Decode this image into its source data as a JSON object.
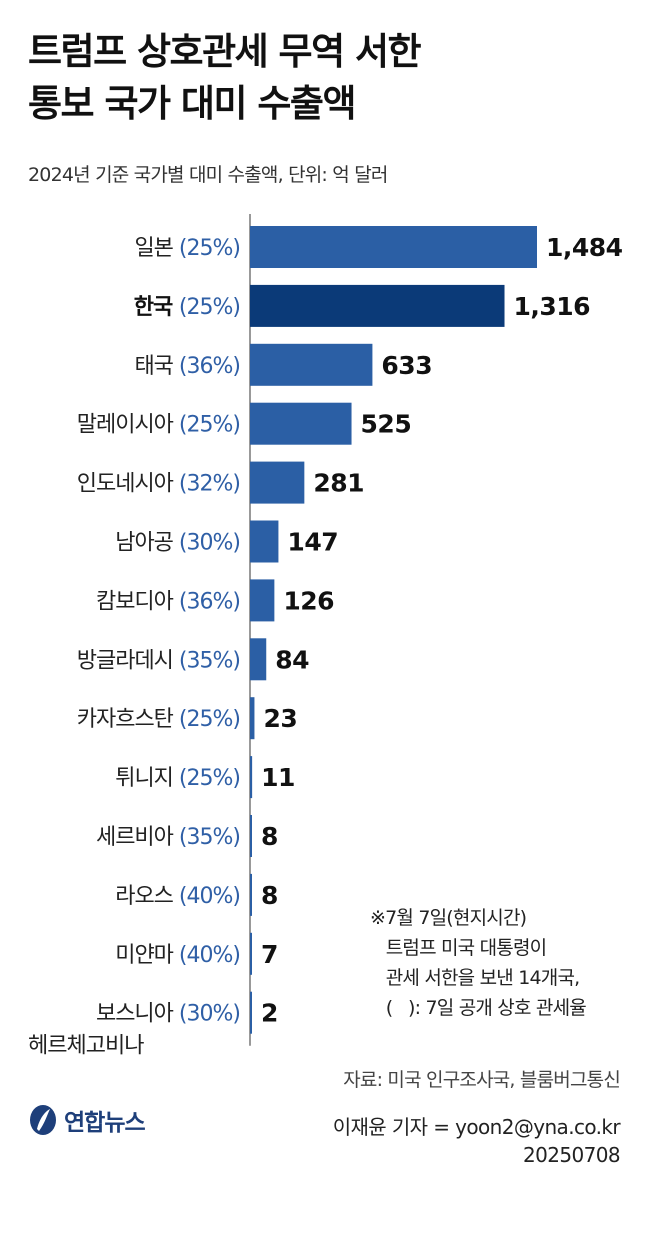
{
  "title_line1": "트럼프 상호관세 무역 서한",
  "title_line2": "통보 국가 대미 수출액",
  "subtitle": "2024년 기준 국가별 대미 수출액, 단위: 억 달러",
  "colors": {
    "bar": "#2b5fa5",
    "highlight": "#0b3a78",
    "rate": "#2f5fa6",
    "axis": "#999999"
  },
  "chart_data": {
    "type": "bar",
    "orientation": "horizontal",
    "categories": [
      "일본",
      "한국",
      "태국",
      "말레이시아",
      "인도네시아",
      "남아공",
      "캄보디아",
      "방글라데시",
      "카자흐스탄",
      "튀니지",
      "세르비아",
      "라오스",
      "미얀마",
      "보스니아 헤르체고비나"
    ],
    "category_lines": [
      [
        "일본"
      ],
      [
        "한국"
      ],
      [
        "태국"
      ],
      [
        "말레이시아"
      ],
      [
        "인도네시아"
      ],
      [
        "남아공"
      ],
      [
        "캄보디아"
      ],
      [
        "방글라데시"
      ],
      [
        "카자흐스탄"
      ],
      [
        "튀니지"
      ],
      [
        "세르비아"
      ],
      [
        "라오스"
      ],
      [
        "미얀마"
      ],
      [
        "보스니아",
        "헤르체고비나"
      ]
    ],
    "tariff_rates": [
      "(25%)",
      "(25%)",
      "(36%)",
      "(25%)",
      "(32%)",
      "(30%)",
      "(36%)",
      "(35%)",
      "(25%)",
      "(25%)",
      "(35%)",
      "(40%)",
      "(40%)",
      "(30%)"
    ],
    "values": [
      1484,
      1316,
      633,
      525,
      281,
      147,
      126,
      84,
      23,
      11,
      8,
      8,
      7,
      2
    ],
    "value_labels": [
      "1,484",
      "1,316",
      "633",
      "525",
      "281",
      "147",
      "126",
      "84",
      "23",
      "11",
      "8",
      "8",
      "7",
      "2"
    ],
    "highlight_index": 1,
    "xlim": [
      0,
      1484
    ]
  },
  "note": [
    "※7월 7일(현지시간)",
    "   트럼프 미국 대통령이",
    "   관세 서한을 보낸 14개국,",
    "   (   ): 7일 공개 상호 관세율"
  ],
  "source": "자료: 미국 인구조사국, 블룸버그통신",
  "credit_line1": "이재윤 기자 = yoon2@yna.co.kr",
  "credit_line2": "20250708",
  "logo_text": "연합뉴스"
}
